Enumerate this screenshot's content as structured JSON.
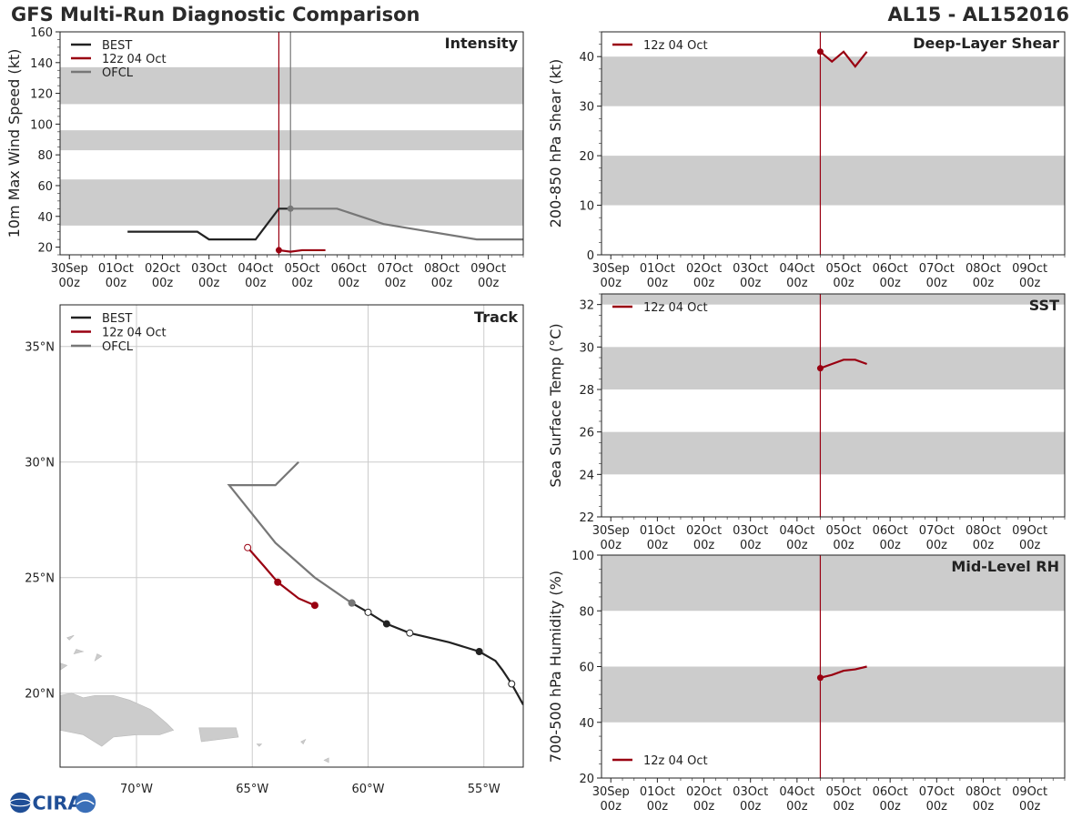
{
  "header": {
    "title_left": "GFS Multi-Run Diagnostic Comparison",
    "title_right": "AL15 - AL152016"
  },
  "logo": {
    "text": "CIRA"
  },
  "colors": {
    "best": "#222222",
    "run": "#990011",
    "ofcl": "#777777",
    "band": "#cccccc",
    "grid": "#cccccc"
  },
  "time_axis": {
    "ticks": [
      [
        "30Sep",
        "00z"
      ],
      [
        "01Oct",
        "00z"
      ],
      [
        "02Oct",
        "00z"
      ],
      [
        "03Oct",
        "00z"
      ],
      [
        "04Oct",
        "00z"
      ],
      [
        "05Oct",
        "00z"
      ],
      [
        "06Oct",
        "00z"
      ],
      [
        "07Oct",
        "00z"
      ],
      [
        "08Oct",
        "00z"
      ],
      [
        "09Oct",
        "00z"
      ]
    ]
  },
  "chart_data": [
    {
      "id": "intensity",
      "type": "line",
      "title": "Intensity",
      "ylabel": "10m Max Wind Speed (kt)",
      "ylim": [
        15,
        160
      ],
      "yticks": [
        20,
        40,
        60,
        80,
        100,
        120,
        140,
        160
      ],
      "xlim": [
        -0.2,
        9.75
      ],
      "bands": [
        [
          34,
          64
        ],
        [
          83,
          96
        ],
        [
          113,
          137
        ]
      ],
      "vlines": [
        {
          "x": 4.5,
          "color": "run"
        },
        {
          "x": 4.75,
          "color": "ofcl"
        }
      ],
      "legend": [
        {
          "label": "BEST",
          "color": "best"
        },
        {
          "label": "12z 04 Oct",
          "color": "run"
        },
        {
          "label": "OFCL",
          "color": "ofcl"
        }
      ],
      "series": [
        {
          "name": "BEST",
          "color": "best",
          "x": [
            1.25,
            2.75,
            3.0,
            4.0,
            4.5,
            4.75
          ],
          "y": [
            30,
            30,
            25,
            25,
            45,
            45
          ]
        },
        {
          "name": "12z 04 Oct",
          "color": "run",
          "x": [
            4.5,
            4.75,
            5.0,
            5.5
          ],
          "y": [
            18,
            17,
            18,
            18
          ],
          "marker_first": true
        },
        {
          "name": "OFCL",
          "color": "ofcl",
          "x": [
            4.75,
            5.75,
            6.75,
            7.75,
            8.75,
            9.75
          ],
          "y": [
            45,
            45,
            35,
            30,
            25,
            25
          ],
          "marker_first": true
        }
      ]
    },
    {
      "id": "shear",
      "type": "line",
      "title": "Deep-Layer Shear",
      "ylabel": "200-850 hPa Shear (kt)",
      "ylim": [
        0,
        45
      ],
      "yticks": [
        0,
        10,
        20,
        30,
        40
      ],
      "xlim": [
        -0.2,
        9.75
      ],
      "bands": [
        [
          10,
          20
        ],
        [
          30,
          40
        ]
      ],
      "vlines": [
        {
          "x": 4.5,
          "color": "run"
        }
      ],
      "legend": [
        {
          "label": "12z 04 Oct",
          "color": "run"
        }
      ],
      "series": [
        {
          "name": "12z 04 Oct",
          "color": "run",
          "x": [
            4.5,
            4.75,
            5.0,
            5.25,
            5.5
          ],
          "y": [
            41,
            39,
            41,
            38,
            41
          ],
          "marker_first": true
        }
      ]
    },
    {
      "id": "sst",
      "type": "line",
      "title": "SST",
      "ylabel": "Sea Surface Temp (°C)",
      "ylim": [
        22,
        32.5
      ],
      "yticks": [
        22,
        24,
        26,
        28,
        30,
        32
      ],
      "xlim": [
        -0.2,
        9.75
      ],
      "bands": [
        [
          24,
          26
        ],
        [
          28,
          30
        ],
        [
          32,
          33
        ]
      ],
      "vlines": [
        {
          "x": 4.5,
          "color": "run"
        }
      ],
      "legend": [
        {
          "label": "12z 04 Oct",
          "color": "run"
        }
      ],
      "series": [
        {
          "name": "12z 04 Oct",
          "color": "run",
          "x": [
            4.5,
            4.75,
            5.0,
            5.25,
            5.5
          ],
          "y": [
            29.0,
            29.2,
            29.4,
            29.4,
            29.2
          ],
          "marker_first": true
        }
      ]
    },
    {
      "id": "rh",
      "type": "line",
      "title": "Mid-Level RH",
      "ylabel": "700-500 hPa Humidity (%)",
      "ylim": [
        20,
        100
      ],
      "yticks": [
        20,
        40,
        60,
        80,
        100
      ],
      "xlim": [
        -0.2,
        9.75
      ],
      "bands": [
        [
          40,
          60
        ],
        [
          80,
          100
        ]
      ],
      "vlines": [
        {
          "x": 4.5,
          "color": "run"
        }
      ],
      "legend": [
        {
          "label": "12z 04 Oct",
          "color": "run"
        }
      ],
      "series": [
        {
          "name": "12z 04 Oct",
          "color": "run",
          "x": [
            4.5,
            4.75,
            5.0,
            5.25,
            5.5
          ],
          "y": [
            56,
            57,
            58.5,
            59,
            60
          ],
          "marker_first": true
        }
      ]
    },
    {
      "id": "track",
      "type": "scatter",
      "title": "Track",
      "xlim": [
        -73.3,
        -53.3
      ],
      "ylim": [
        16.8,
        36.8
      ],
      "xticks": [
        [
          -70,
          "70°W"
        ],
        [
          -65,
          "65°W"
        ],
        [
          -60,
          "60°W"
        ],
        [
          -55,
          "55°W"
        ]
      ],
      "yticks": [
        [
          20,
          "20°N"
        ],
        [
          25,
          "25°N"
        ],
        [
          30,
          "30°N"
        ],
        [
          35,
          "35°N"
        ]
      ],
      "legend": [
        {
          "label": "BEST",
          "color": "best"
        },
        {
          "label": "12z 04 Oct",
          "color": "run"
        },
        {
          "label": "OFCL",
          "color": "ofcl"
        }
      ],
      "series": [
        {
          "name": "BEST",
          "color": "best",
          "lon": [
            -53.3,
            -53.8,
            -54.2,
            -54.5,
            -55.2,
            -56.5,
            -58.2,
            -59.2,
            -60.0,
            -60.7
          ],
          "lat": [
            19.5,
            20.4,
            21.0,
            21.4,
            21.8,
            22.2,
            22.6,
            23.0,
            23.5,
            23.9
          ],
          "dots": [
            [
              -53.8,
              20.4,
              "open"
            ],
            [
              -55.2,
              21.8,
              "fill"
            ],
            [
              -58.2,
              22.6,
              "open"
            ],
            [
              -59.2,
              23.0,
              "fill"
            ],
            [
              -60.0,
              23.5,
              "open"
            ],
            [
              -60.7,
              23.9,
              "fill"
            ]
          ]
        },
        {
          "name": "OFCL",
          "color": "ofcl",
          "lon": [
            -60.7,
            -61.0,
            -62.3,
            -64.0,
            -66.0,
            -64.0,
            -63.0
          ],
          "lat": [
            23.9,
            24.1,
            25.0,
            26.5,
            29.0,
            29.0,
            30.0
          ],
          "dots": [
            [
              -60.7,
              23.9,
              "gray"
            ]
          ]
        },
        {
          "name": "12z 04 Oct",
          "color": "run",
          "lon": [
            -65.2,
            -64.5,
            -63.9,
            -63.0,
            -62.3
          ],
          "lat": [
            26.3,
            25.5,
            24.8,
            24.1,
            23.8
          ],
          "dots": [
            [
              -65.2,
              26.3,
              "open"
            ],
            [
              -63.9,
              24.8,
              "fill"
            ],
            [
              -62.3,
              23.8,
              "runfill"
            ]
          ]
        }
      ]
    }
  ]
}
